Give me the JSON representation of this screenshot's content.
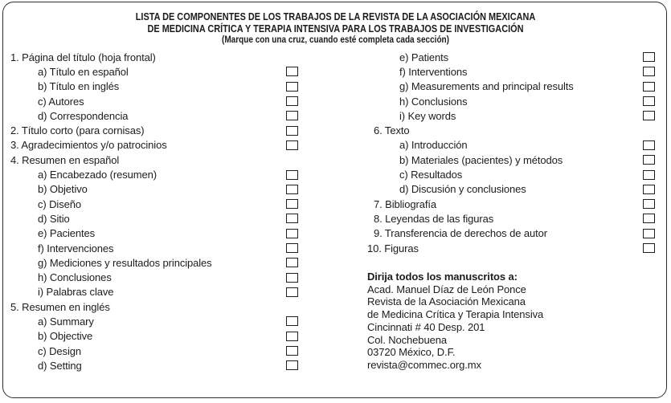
{
  "header": {
    "title_line1": "LISTA DE COMPONENTES DE LOS TRABAJOS DE LA REVISTA DE LA ASOCIACIÓN MEXICANA",
    "title_line2": "DE MEDICINA CRÍTICA Y TERAPIA INTENSIVA PARA LOS TRABAJOS DE INVESTIGACIÓN",
    "subtitle": "(Marque con una cruz, cuando esté completa cada sección)"
  },
  "checklist": {
    "left": [
      {
        "label": "1. Página del título (hoja frontal)",
        "level": "n1",
        "checkbox": false
      },
      {
        "label": "a) Título en español",
        "level": "sub",
        "checkbox": true,
        "checked": false
      },
      {
        "label": "b) Título en inglés",
        "level": "sub",
        "checkbox": true,
        "checked": false
      },
      {
        "label": "c) Autores",
        "level": "sub",
        "checkbox": true,
        "checked": false
      },
      {
        "label": "d) Correspondencia",
        "level": "sub",
        "checkbox": true,
        "checked": false
      },
      {
        "label": "2. Título corto (para cornisas)",
        "level": "n1",
        "checkbox": true,
        "checked": false
      },
      {
        "label": "3. Agradecimientos y/o patrocinios",
        "level": "n1",
        "checkbox": true,
        "checked": false
      },
      {
        "label": "4. Resumen en español",
        "level": "n1",
        "checkbox": false
      },
      {
        "label": "a) Encabezado (resumen)",
        "level": "sub",
        "checkbox": true,
        "checked": false
      },
      {
        "label": "b) Objetivo",
        "level": "sub",
        "checkbox": true,
        "checked": false
      },
      {
        "label": "c) Diseño",
        "level": "sub",
        "checkbox": true,
        "checked": false
      },
      {
        "label": "d) Sitio",
        "level": "sub",
        "checkbox": true,
        "checked": false
      },
      {
        "label": "e) Pacientes",
        "level": "sub",
        "checkbox": true,
        "checked": false
      },
      {
        "label": "f) Intervenciones",
        "level": "sub",
        "checkbox": true,
        "checked": false
      },
      {
        "label": "g) Mediciones y resultados principales",
        "level": "sub",
        "checkbox": true,
        "checked": false
      },
      {
        "label": "h) Conclusiones",
        "level": "sub",
        "checkbox": true,
        "checked": false
      },
      {
        "label": "i) Palabras clave",
        "level": "sub",
        "checkbox": true,
        "checked": false
      },
      {
        "label": "5. Resumen en inglés",
        "level": "n1",
        "checkbox": false
      },
      {
        "label": "a) Summary",
        "level": "sub",
        "checkbox": true,
        "checked": false
      },
      {
        "label": "b) Objective",
        "level": "sub",
        "checkbox": true,
        "checked": false
      },
      {
        "label": "c) Design",
        "level": "sub",
        "checkbox": true,
        "checked": false
      },
      {
        "label": "d) Setting",
        "level": "sub",
        "checkbox": true,
        "checked": false
      }
    ],
    "right": [
      {
        "label": "e) Patients",
        "level": "sub",
        "checkbox": true,
        "checked": false
      },
      {
        "label": "f) Interventions",
        "level": "sub",
        "checkbox": true,
        "checked": false
      },
      {
        "label": "g) Measurements and principal results",
        "level": "sub",
        "checkbox": true,
        "checked": false
      },
      {
        "label": "h) Conclusions",
        "level": "sub",
        "checkbox": true,
        "checked": false
      },
      {
        "label": "i) Key words",
        "level": "sub",
        "checkbox": true,
        "checked": false
      },
      {
        "label": "6. Texto",
        "level": "n1",
        "checkbox": false
      },
      {
        "label": "a) Introducción",
        "level": "sub",
        "checkbox": true,
        "checked": false
      },
      {
        "label": "b) Materiales (pacientes) y métodos",
        "level": "sub",
        "checkbox": true,
        "checked": false
      },
      {
        "label": "c) Resultados",
        "level": "sub",
        "checkbox": true,
        "checked": false
      },
      {
        "label": "d) Discusión y conclusiones",
        "level": "sub",
        "checkbox": true,
        "checked": false
      },
      {
        "label": "7. Bibliografía",
        "level": "n1",
        "checkbox": true,
        "checked": false
      },
      {
        "label": "8. Leyendas de las figuras",
        "level": "n1",
        "checkbox": true,
        "checked": false
      },
      {
        "label": "9. Transferencia de derechos de autor",
        "level": "n1",
        "checkbox": true,
        "checked": false
      },
      {
        "label": "10. Figuras",
        "level": "n2",
        "checkbox": true,
        "checked": false
      }
    ]
  },
  "address": {
    "heading": "Dirija todos los manuscritos a:",
    "lines": [
      "Acad. Manuel Díaz de León Ponce",
      "Revista de la Asociación Mexicana",
      "de Medicina Crítica y Terapia Intensiva",
      "Cincinnati # 40 Desp. 201",
      "Col. Nochebuena",
      "03720 México, D.F.",
      "revista@commec.org.mx"
    ]
  },
  "colors": {
    "ink": "#1c1c1c",
    "background": "#ffffff",
    "border": "#2e2e2e"
  }
}
